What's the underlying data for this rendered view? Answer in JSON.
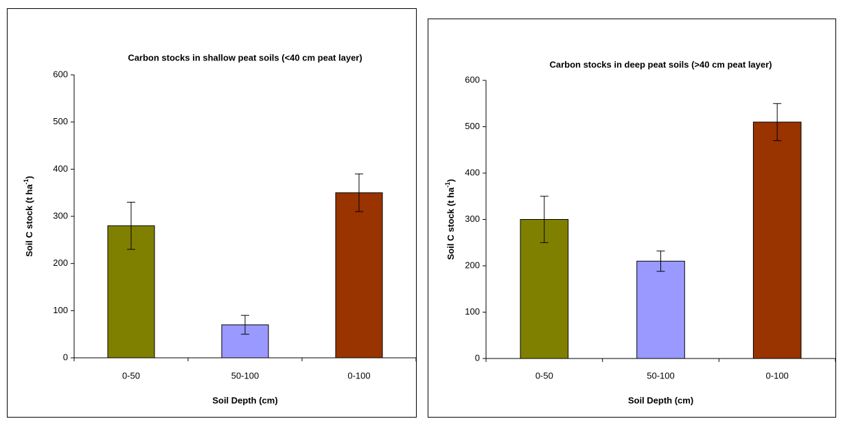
{
  "chart_data": [
    {
      "type": "bar",
      "title": "Carbon stocks in shallow peat soils (<40 cm peat layer)",
      "x_label": "Soil Depth (cm)",
      "y_label": {
        "text": "Soil C stock (t ha",
        "sup": "-1",
        "end": ")"
      },
      "categories": [
        "0-50",
        "50-100",
        "0-100"
      ],
      "values": [
        280,
        70,
        350
      ],
      "errors": [
        50,
        20,
        40
      ],
      "colors": [
        "#808000",
        "#9999ff",
        "#993300"
      ],
      "ylim": [
        0,
        600
      ],
      "yticks": [
        0,
        100,
        200,
        300,
        400,
        500,
        600
      ],
      "grid": false
    },
    {
      "type": "bar",
      "title": "Carbon stocks in deep peat soils (>40 cm peat layer)",
      "x_label": "Soil Depth (cm)",
      "y_label": {
        "text": "Soil C stock (t ha",
        "sup": "-1",
        "end": ")"
      },
      "categories": [
        "0-50",
        "50-100",
        "0-100"
      ],
      "values": [
        300,
        210,
        510
      ],
      "errors": [
        50,
        22,
        40
      ],
      "colors": [
        "#808000",
        "#9999ff",
        "#993300"
      ],
      "ylim": [
        0,
        600
      ],
      "yticks": [
        0,
        100,
        200,
        300,
        400,
        500,
        600
      ],
      "grid": false
    }
  ]
}
